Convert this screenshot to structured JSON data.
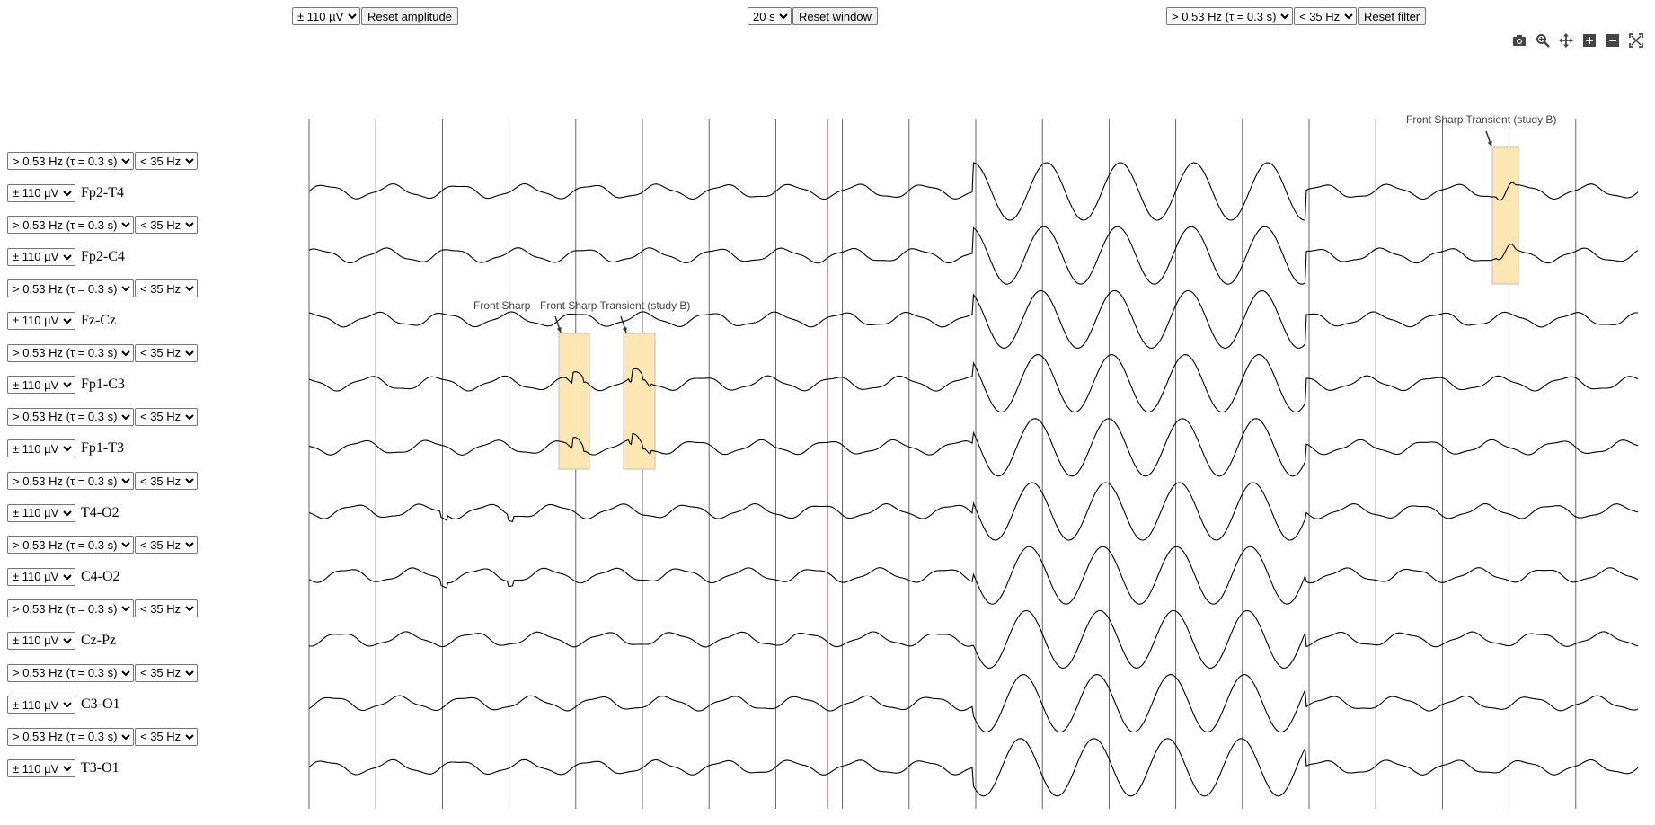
{
  "top_controls": {
    "amplitude": {
      "selected": "± 110 µV",
      "reset_label": "Reset amplitude"
    },
    "window": {
      "selected": "20 s",
      "reset_label": "Reset window"
    },
    "filter": {
      "highpass_selected": "> 0.53 Hz (τ = 0.3 s)",
      "lowpass_selected": "< 35 Hz",
      "reset_label": "Reset filter"
    }
  },
  "modebar": [
    "camera-icon",
    "zoom-icon",
    "pan-icon",
    "zoom-in-icon",
    "zoom-out-icon",
    "autoscale-icon"
  ],
  "channels": [
    {
      "name": "Fp2-T4",
      "highpass": "> 0.53 Hz (τ = 0.3 s)",
      "lowpass": "< 35 Hz",
      "amplitude": "± 110 µV"
    },
    {
      "name": "Fp2-C4",
      "highpass": "> 0.53 Hz (τ = 0.3 s)",
      "lowpass": "< 35 Hz",
      "amplitude": "± 110 µV"
    },
    {
      "name": "Fz-Cz",
      "highpass": "> 0.53 Hz (τ = 0.3 s)",
      "lowpass": "< 35 Hz",
      "amplitude": "± 110 µV"
    },
    {
      "name": "Fp1-C3",
      "highpass": "> 0.53 Hz (τ = 0.3 s)",
      "lowpass": "< 35 Hz",
      "amplitude": "± 110 µV"
    },
    {
      "name": "Fp1-T3",
      "highpass": "> 0.53 Hz (τ = 0.3 s)",
      "lowpass": "< 35 Hz",
      "amplitude": "± 110 µV"
    },
    {
      "name": "T4-O2",
      "highpass": "> 0.53 Hz (τ = 0.3 s)",
      "lowpass": "< 35 Hz",
      "amplitude": "± 110 µV"
    },
    {
      "name": "C4-O2",
      "highpass": "> 0.53 Hz (τ = 0.3 s)",
      "lowpass": "< 35 Hz",
      "amplitude": "± 110 µV"
    },
    {
      "name": "Cz-Pz",
      "highpass": "> 0.53 Hz (τ = 0.3 s)",
      "lowpass": "< 35 Hz",
      "amplitude": "± 110 µV"
    },
    {
      "name": "C3-O1",
      "highpass": "> 0.53 Hz (τ = 0.3 s)",
      "lowpass": "< 35 Hz",
      "amplitude": "± 110 µV"
    },
    {
      "name": "T3-O1",
      "highpass": "> 0.53 Hz (τ = 0.3 s)",
      "lowpass": "< 35 Hz",
      "amplitude": "± 110 µV"
    }
  ],
  "annotations": [
    {
      "text": "Front Sharp Transient (study B)",
      "label_shown": "Front Sharp ",
      "channel_span": [
        "Fp1-C3",
        "Fp1-T3"
      ]
    },
    {
      "text": "Front Sharp Transient (study B)",
      "label_shown": "Front Sharp Transient (study B)",
      "channel_span": [
        "Fp1-C3",
        "Fp1-T3"
      ]
    },
    {
      "text": "Front Sharp Transient (study B)",
      "label_shown": "Front Sharp Transient (study B)",
      "channel_span": [
        "Fp2-T4",
        "Fp2-C4"
      ]
    }
  ],
  "colors": {
    "trace": "#000000",
    "gridline": "#555555",
    "cursor_line": "#d62728",
    "annotation_fill": "#ffe7b3",
    "annotation_border": "#bdbdbd"
  }
}
